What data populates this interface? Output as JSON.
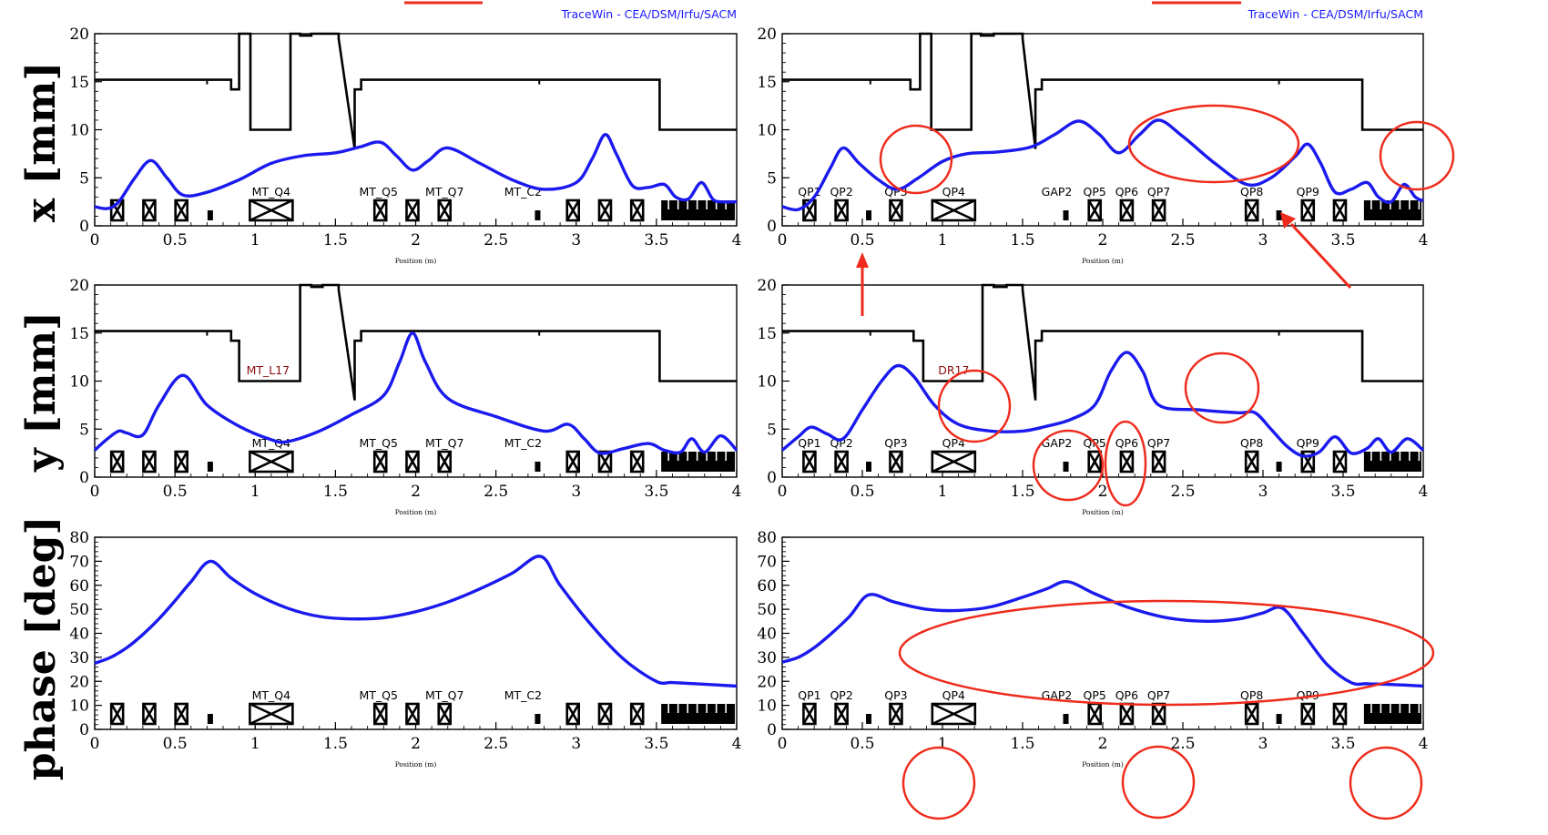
{
  "figure": {
    "row_labels": [
      "x [mm]",
      "y [mm]",
      "phase [deg]"
    ],
    "credit": "TraceWin - CEA/DSM/Irfu/SACM",
    "x_axis_label": "Position (m)",
    "colors": {
      "envelope": "#1a1aee",
      "aperture": "#000000",
      "annotation": "#ee2b1c",
      "credit": "#1a1aff"
    }
  },
  "chart_data": [
    {
      "id": "left-x",
      "type": "line",
      "ylim": [
        0,
        20
      ],
      "yticks": [
        0,
        5,
        10,
        15,
        20
      ],
      "xlim": [
        0,
        4
      ],
      "xticks": [
        "0",
        "0.5",
        "1",
        "1.5",
        "2",
        "2.5",
        "3",
        "3.5",
        "4"
      ],
      "xlabel": "Position (m)",
      "grid": false,
      "show_credit": true,
      "series": [
        {
          "x": [
            0,
            0.08,
            0.15,
            0.25,
            0.35,
            0.45,
            0.55,
            0.7,
            0.9,
            1.1,
            1.3,
            1.5,
            1.65,
            1.78,
            1.88,
            1.98,
            2.08,
            2.2,
            2.4,
            2.6,
            2.8,
            3.0,
            3.1,
            3.18,
            3.25,
            3.35,
            3.45,
            3.55,
            3.62,
            3.7,
            3.78,
            3.85,
            3.9,
            4.0
          ],
          "y": [
            2.0,
            1.8,
            2.5,
            5.0,
            6.8,
            5.0,
            3.2,
            3.5,
            4.8,
            6.5,
            7.3,
            7.6,
            8.2,
            8.7,
            7.3,
            5.8,
            6.8,
            8.1,
            6.5,
            4.8,
            3.8,
            4.5,
            7.0,
            9.5,
            7.5,
            4.2,
            4.0,
            4.3,
            3.0,
            2.8,
            4.5,
            2.8,
            2.5,
            2.5
          ]
        }
      ],
      "aperture": [
        [
          0,
          15.2
        ],
        [
          0.85,
          15.2
        ],
        [
          0.85,
          14.2
        ],
        [
          0.9,
          14.2
        ],
        [
          0.9,
          20
        ],
        [
          0.97,
          20
        ],
        [
          0.97,
          10
        ],
        [
          1.22,
          10
        ],
        [
          1.22,
          20
        ],
        [
          1.28,
          20
        ],
        [
          1.28,
          19.8
        ],
        [
          1.35,
          19.8
        ],
        [
          1.35,
          20
        ],
        [
          1.52,
          20
        ],
        [
          1.52,
          19.5
        ],
        [
          1.62,
          8.0
        ],
        [
          1.62,
          14.2
        ],
        [
          1.66,
          14.2
        ],
        [
          1.66,
          15.2
        ],
        [
          3.52,
          15.2
        ],
        [
          3.52,
          10
        ],
        [
          4.0,
          10
        ]
      ],
      "elements": [
        "MT_Q4",
        "MT_Q5",
        "MT_Q7",
        "MT_C2"
      ]
    },
    {
      "id": "right-x",
      "type": "line",
      "ylim": [
        0,
        20
      ],
      "yticks": [
        0,
        5,
        10,
        15,
        20
      ],
      "xlim": [
        0,
        4
      ],
      "xticks": [
        "0",
        "0.5",
        "1",
        "1.5",
        "2",
        "2.5",
        "3",
        "3.5",
        "4"
      ],
      "xlabel": "Position (m)",
      "grid": false,
      "show_credit": true,
      "series": [
        {
          "x": [
            0,
            0.1,
            0.2,
            0.3,
            0.38,
            0.48,
            0.6,
            0.72,
            0.85,
            1.0,
            1.15,
            1.35,
            1.55,
            1.7,
            1.85,
            1.98,
            2.1,
            2.23,
            2.35,
            2.5,
            2.7,
            2.9,
            3.05,
            3.2,
            3.28,
            3.36,
            3.45,
            3.55,
            3.65,
            3.72,
            3.8,
            3.88,
            3.95,
            4.0
          ],
          "y": [
            2.0,
            1.7,
            3.0,
            6.0,
            8.1,
            6.5,
            4.8,
            3.8,
            5.0,
            6.7,
            7.5,
            7.7,
            8.2,
            9.5,
            10.9,
            9.5,
            7.6,
            9.5,
            11.0,
            9.3,
            6.5,
            4.3,
            5.0,
            7.2,
            8.5,
            6.5,
            3.5,
            3.8,
            4.5,
            3.0,
            2.5,
            4.3,
            3.0,
            2.6
          ]
        }
      ],
      "aperture": [
        [
          0,
          15.2
        ],
        [
          0.8,
          15.2
        ],
        [
          0.8,
          14.2
        ],
        [
          0.86,
          14.2
        ],
        [
          0.86,
          20
        ],
        [
          0.93,
          20
        ],
        [
          0.93,
          10
        ],
        [
          1.18,
          10
        ],
        [
          1.18,
          20
        ],
        [
          1.24,
          20
        ],
        [
          1.24,
          19.8
        ],
        [
          1.32,
          19.8
        ],
        [
          1.32,
          20
        ],
        [
          1.5,
          20
        ],
        [
          1.5,
          19.5
        ],
        [
          1.58,
          8.0
        ],
        [
          1.58,
          14.2
        ],
        [
          1.62,
          14.2
        ],
        [
          1.62,
          15.2
        ],
        [
          3.62,
          15.2
        ],
        [
          3.62,
          10
        ],
        [
          4.0,
          10
        ]
      ],
      "elements": [
        "QP1",
        "QP2",
        "QP3",
        "QP4",
        "GAP2",
        "QP5",
        "QP6",
        "QP7",
        "QP8",
        "QP9"
      ]
    },
    {
      "id": "left-y",
      "type": "line",
      "ylim": [
        0,
        20
      ],
      "yticks": [
        0,
        5,
        10,
        15,
        20
      ],
      "xlim": [
        0,
        4
      ],
      "xticks": [
        "0",
        "0.5",
        "1",
        "1.5",
        "2",
        "2.5",
        "3",
        "3.5",
        "4"
      ],
      "xlabel": "Position (m)",
      "grid": false,
      "show_credit": false,
      "series": [
        {
          "x": [
            0,
            0.08,
            0.15,
            0.2,
            0.3,
            0.4,
            0.55,
            0.7,
            0.9,
            1.1,
            1.2,
            1.4,
            1.6,
            1.8,
            1.9,
            1.98,
            2.06,
            2.2,
            2.5,
            2.8,
            2.95,
            3.05,
            3.15,
            3.3,
            3.45,
            3.55,
            3.65,
            3.72,
            3.8,
            3.9,
            4.0
          ],
          "y": [
            2.8,
            4.0,
            4.8,
            4.6,
            4.4,
            7.5,
            10.6,
            7.5,
            5.3,
            3.9,
            3.7,
            4.8,
            6.5,
            8.5,
            12.0,
            15.0,
            12.0,
            8.2,
            6.3,
            4.8,
            5.5,
            4.0,
            2.5,
            3.0,
            3.5,
            2.8,
            2.6,
            4.0,
            2.6,
            4.3,
            2.8
          ]
        }
      ],
      "aperture": [
        [
          0,
          15.2
        ],
        [
          0.85,
          15.2
        ],
        [
          0.85,
          14.2
        ],
        [
          0.9,
          14.2
        ],
        [
          0.9,
          10
        ],
        [
          1.28,
          10
        ],
        [
          1.28,
          20
        ],
        [
          1.35,
          20
        ],
        [
          1.35,
          19.8
        ],
        [
          1.42,
          19.8
        ],
        [
          1.42,
          20
        ],
        [
          1.52,
          20
        ],
        [
          1.52,
          19.5
        ],
        [
          1.62,
          8.0
        ],
        [
          1.62,
          14.2
        ],
        [
          1.66,
          14.2
        ],
        [
          1.66,
          15.2
        ],
        [
          3.52,
          15.2
        ],
        [
          3.52,
          10
        ],
        [
          4.0,
          10
        ]
      ],
      "elements": [
        "MT_Q4",
        "MT_Q5",
        "MT_Q7",
        "MT_C2"
      ],
      "region_label": "MT_L17"
    },
    {
      "id": "right-y",
      "type": "line",
      "ylim": [
        0,
        20
      ],
      "yticks": [
        0,
        5,
        10,
        15,
        20
      ],
      "xlim": [
        0,
        4
      ],
      "xticks": [
        "0",
        "0.5",
        "1",
        "1.5",
        "2",
        "2.5",
        "3",
        "3.5",
        "4"
      ],
      "xlabel": "Position (m)",
      "grid": false,
      "show_credit": false,
      "series": [
        {
          "x": [
            0,
            0.1,
            0.18,
            0.28,
            0.38,
            0.5,
            0.62,
            0.72,
            0.82,
            0.95,
            1.1,
            1.3,
            1.5,
            1.65,
            1.8,
            1.95,
            2.05,
            2.15,
            2.25,
            2.35,
            2.6,
            2.85,
            2.95,
            3.05,
            3.15,
            3.25,
            3.35,
            3.45,
            3.55,
            3.65,
            3.72,
            3.8,
            3.9,
            4.0
          ],
          "y": [
            2.8,
            4.2,
            5.2,
            4.5,
            4.0,
            7.0,
            10.0,
            11.6,
            10.5,
            7.5,
            5.5,
            4.8,
            4.8,
            5.3,
            6.0,
            7.5,
            11.0,
            13.0,
            11.0,
            7.5,
            7.0,
            6.7,
            6.7,
            5.0,
            3.2,
            2.2,
            2.6,
            4.2,
            2.5,
            3.0,
            4.0,
            2.6,
            4.0,
            2.8
          ]
        }
      ],
      "aperture": [
        [
          0,
          15.2
        ],
        [
          0.82,
          15.2
        ],
        [
          0.82,
          14.2
        ],
        [
          0.88,
          14.2
        ],
        [
          0.88,
          10
        ],
        [
          1.25,
          10
        ],
        [
          1.25,
          20
        ],
        [
          1.32,
          20
        ],
        [
          1.32,
          19.8
        ],
        [
          1.4,
          19.8
        ],
        [
          1.4,
          20
        ],
        [
          1.5,
          20
        ],
        [
          1.5,
          19.5
        ],
        [
          1.58,
          8.0
        ],
        [
          1.58,
          14.2
        ],
        [
          1.62,
          14.2
        ],
        [
          1.62,
          15.2
        ],
        [
          3.62,
          15.2
        ],
        [
          3.62,
          10
        ],
        [
          4.0,
          10
        ]
      ],
      "elements": [
        "QP1",
        "QP2",
        "QP3",
        "QP4",
        "GAP2",
        "QP5",
        "QP6",
        "QP7",
        "QP8",
        "QP9"
      ],
      "region_label": "DR17"
    },
    {
      "id": "left-phase",
      "type": "line",
      "ylim": [
        0,
        80
      ],
      "yticks": [
        0,
        10,
        20,
        30,
        40,
        50,
        60,
        70,
        80
      ],
      "xlim": [
        0,
        4
      ],
      "xticks": [
        "0",
        "0.5",
        "1",
        "1.5",
        "2",
        "2.5",
        "3",
        "3.5",
        "4"
      ],
      "xlabel": "Position (m)",
      "grid": false,
      "show_credit": false,
      "series": [
        {
          "x": [
            0,
            0.1,
            0.2,
            0.3,
            0.4,
            0.5,
            0.6,
            0.72,
            0.85,
            1.0,
            1.2,
            1.4,
            1.6,
            1.8,
            2.0,
            2.2,
            2.4,
            2.6,
            2.78,
            2.9,
            3.1,
            3.3,
            3.5,
            3.6,
            3.8,
            4.0
          ],
          "y": [
            27.5,
            30.0,
            34.0,
            39.5,
            46.0,
            53.5,
            61.5,
            70.0,
            63.0,
            56.5,
            50.5,
            47.0,
            46.0,
            46.5,
            49.0,
            53.0,
            58.5,
            65.0,
            72.0,
            60.0,
            43.0,
            29.0,
            20.0,
            19.5,
            18.8,
            18.0
          ]
        }
      ],
      "elements": [
        "MT_Q4",
        "MT_Q5",
        "MT_Q7",
        "MT_C2"
      ]
    },
    {
      "id": "right-phase",
      "type": "line",
      "ylim": [
        0,
        80
      ],
      "yticks": [
        0,
        10,
        20,
        30,
        40,
        50,
        60,
        70,
        80
      ],
      "xlim": [
        0,
        4
      ],
      "xticks": [
        "0",
        "0.5",
        "1",
        "1.5",
        "2",
        "2.5",
        "3",
        "3.5",
        "4"
      ],
      "xlabel": "Position (m)",
      "grid": false,
      "show_credit": false,
      "series": [
        {
          "x": [
            0,
            0.1,
            0.2,
            0.3,
            0.42,
            0.54,
            0.7,
            0.9,
            1.1,
            1.3,
            1.5,
            1.65,
            1.78,
            1.95,
            2.15,
            2.4,
            2.65,
            2.85,
            3.0,
            3.12,
            3.25,
            3.4,
            3.55,
            3.65,
            3.8,
            4.0
          ],
          "y": [
            28.0,
            30.0,
            34.0,
            39.5,
            47.0,
            56.0,
            53.0,
            50.0,
            49.5,
            51.0,
            55.0,
            58.5,
            61.5,
            56.5,
            51.0,
            46.5,
            45.0,
            46.0,
            48.5,
            50.5,
            40.0,
            27.0,
            19.5,
            19.0,
            18.7,
            18.0
          ]
        }
      ],
      "elements": [
        "QP1",
        "QP2",
        "QP3",
        "QP4",
        "GAP2",
        "QP5",
        "QP6",
        "QP7",
        "QP8",
        "QP9"
      ]
    }
  ]
}
